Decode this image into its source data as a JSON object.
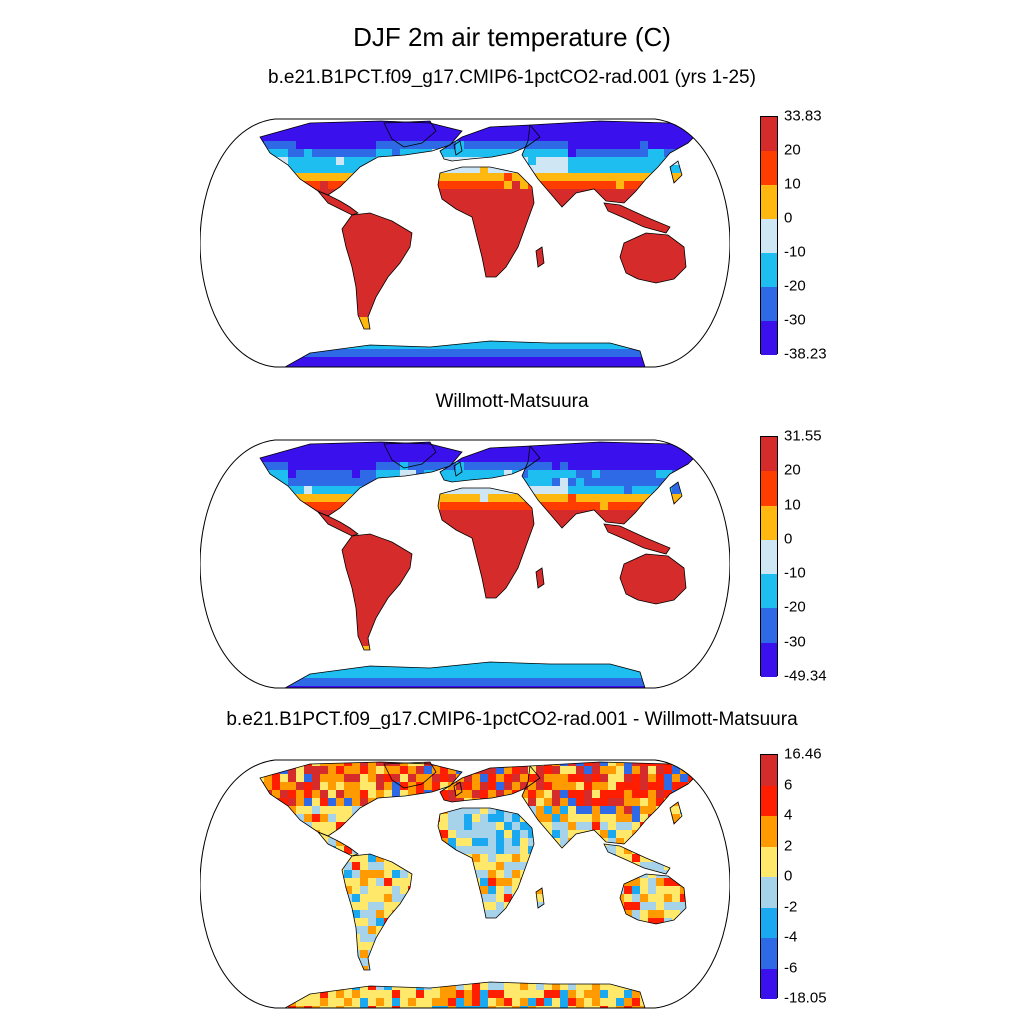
{
  "title": "DJF 2m air temperature (C)",
  "panels": [
    {
      "id": "model",
      "title": "b.e21.B1PCT.f09_g17.CMIP6-1pctCO2-rad.001 (yrs 1-25)",
      "colorbar": {
        "labels": [
          "33.83",
          "20",
          "10",
          "0",
          "-10",
          "-20",
          "-30",
          "-38.23"
        ],
        "colors": [
          "#d62b2b",
          "#ff3d00",
          "#ffb80f",
          "#cfe7f5",
          "#1ebef0",
          "#2e6ae6",
          "#3a10ec"
        ]
      }
    },
    {
      "id": "obs",
      "title": "Willmott-Matsuura",
      "colorbar": {
        "labels": [
          "31.55",
          "20",
          "10",
          "0",
          "-10",
          "-20",
          "-30",
          "-49.34"
        ],
        "colors": [
          "#d62b2b",
          "#ff3d00",
          "#ffb80f",
          "#cfe7f5",
          "#1ebef0",
          "#2e6ae6",
          "#3a10ec"
        ]
      }
    },
    {
      "id": "diff",
      "title": "b.e21.B1PCT.f09_g17.CMIP6-1pctCO2-rad.001 - Willmott-Matsuura",
      "colorbar": {
        "labels": [
          "16.46",
          "6",
          "4",
          "2",
          "0",
          "-2",
          "-4",
          "-6",
          "-18.05"
        ],
        "colors": [
          "#d62b2b",
          "#ff1e00",
          "#ff9a00",
          "#ffe86a",
          "#a6d2ea",
          "#1aa8f0",
          "#2e6ae6",
          "#3a10ec"
        ]
      }
    }
  ]
}
